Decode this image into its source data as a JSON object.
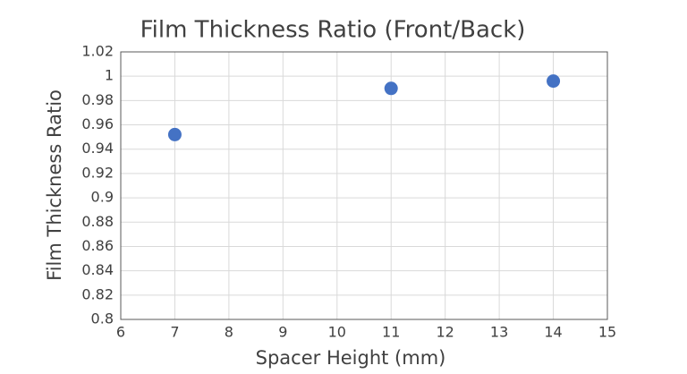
{
  "chart_data": {
    "type": "scatter",
    "title": "Film Thickness Ratio (Front/Back)",
    "x_label": "Spacer Height (mm)",
    "y_label": "Film Thickness Ratio",
    "series": [
      {
        "color": "#4472c4",
        "x": [
          7,
          11,
          14
        ],
        "values": [
          0.952,
          0.99,
          0.996
        ]
      }
    ],
    "xlim": [
      6,
      15
    ],
    "xticks": [
      6,
      7,
      8,
      9,
      10,
      11,
      12,
      13,
      14,
      15
    ],
    "ylim": [
      0.8,
      1.02
    ],
    "yticks": [
      0.8,
      0.82,
      0.84,
      0.86,
      0.88,
      0.9,
      0.92,
      0.94,
      0.96,
      0.98,
      1,
      1.02
    ],
    "grid": true
  }
}
